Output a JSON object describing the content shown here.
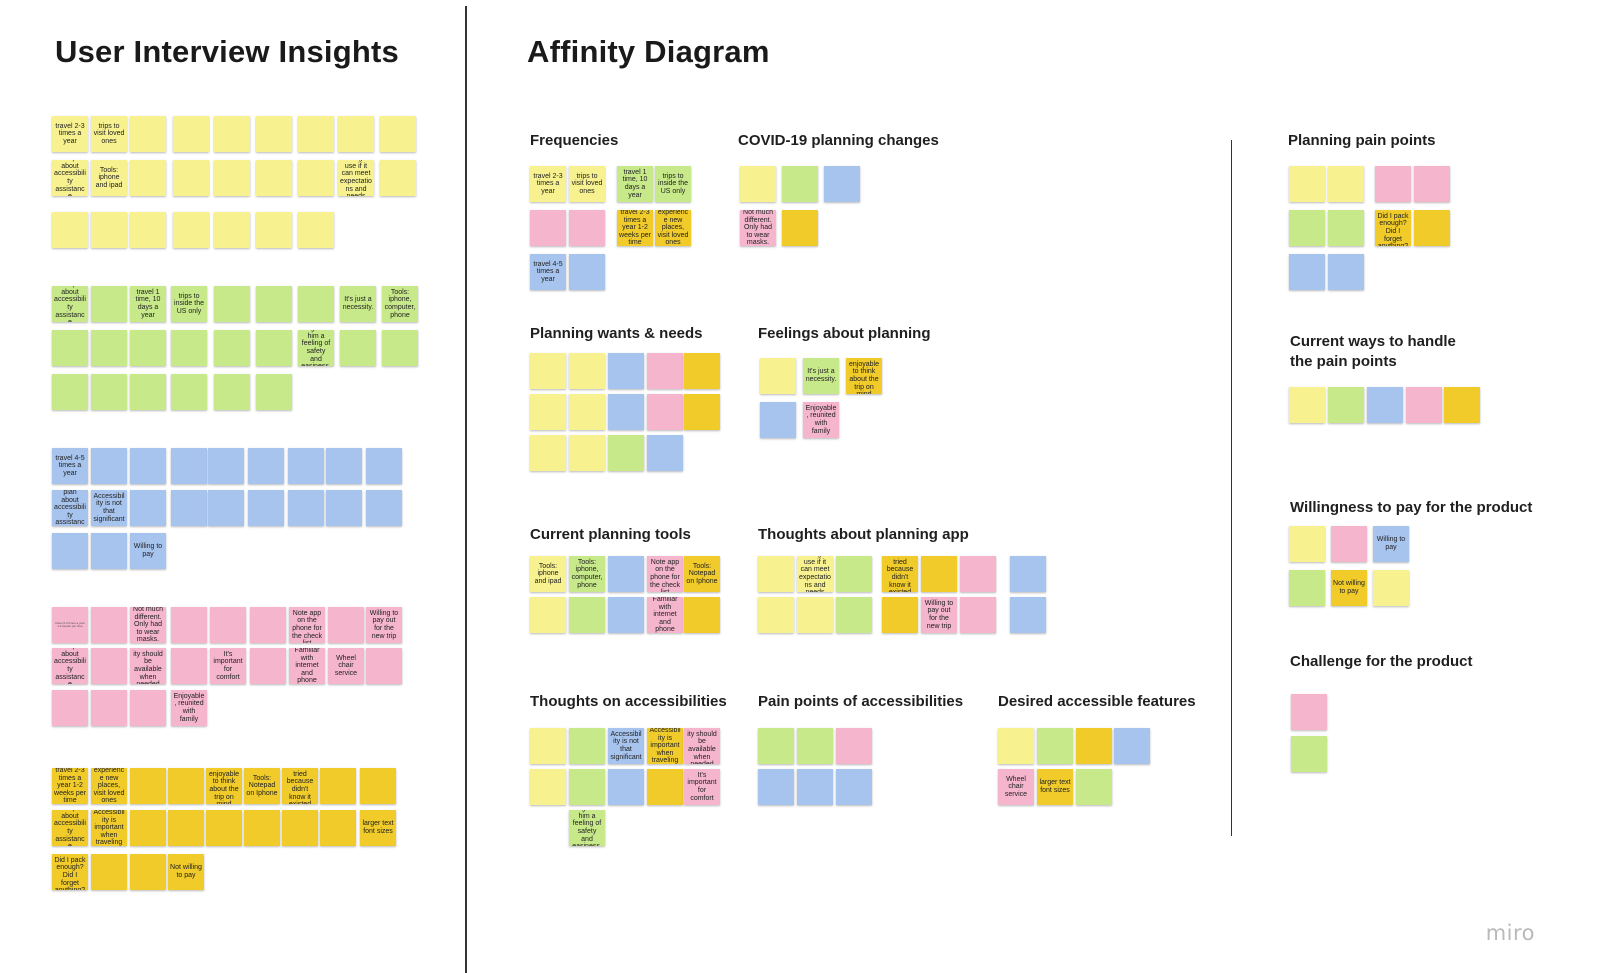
{
  "board": {
    "left_title": "User Interview Insights",
    "right_title": "Affinity Diagram",
    "logo": "miro"
  },
  "colors": {
    "yellow": "#f7f28f",
    "green": "#c7e98a",
    "blue": "#a7c4ef",
    "pink": "#f5b5cd",
    "orange": "#f0cb2a"
  },
  "clusters": [
    {
      "label": "Frequencies"
    },
    {
      "label": "COVID-19 planning changes"
    },
    {
      "label": "Planning pain points"
    },
    {
      "label": "Planning wants & needs"
    },
    {
      "label": "Feelings about planning"
    },
    {
      "label": "Current ways to handle the pain points"
    },
    {
      "label": "Current planning tools"
    },
    {
      "label": "Thoughts about planning app"
    },
    {
      "label": "Willingness to pay for the product"
    },
    {
      "label": "Thoughts on accessibilities"
    },
    {
      "label": "Pain points of accessibilities"
    },
    {
      "label": "Desired accessible features"
    },
    {
      "label": "Challenge for the product"
    }
  ],
  "notes": {
    "travel_2_3": "travel 2-3 times a year",
    "trips_loved": "trips to visit loved ones",
    "plan_accessibility": "Does plan about accessibility assistance",
    "tools_ipad": "Tools: iphone and ipad",
    "willing_expect": "Willing to use if it can meet expectations and needs",
    "travel_1_10": "travel 1 time, 10 days a year",
    "trips_us": "trips to inside the US only",
    "necessity": "It's just a necessity.",
    "gives_safety": "It gives him a feeling of safety and easiness.",
    "tools_phone": "Tools: iphone, computer, phone",
    "travel_4_5": "travel 4-5 times a year",
    "not_plan_access": "Does not plan about accessibility assistance",
    "access_not_sig": "Accessibility is not that significant",
    "willing_pay": "Willing to pay",
    "tools_notes_app": "Tools: Note app on the phone for the check list",
    "familiar_phone": "Familiar with internet and phone",
    "wheel_chair": "Wheel chair service",
    "willing_out": "Willing to pay out for the new trip",
    "important_comfort": "It's important for comfort",
    "enjoyable_family": "Enjoyable, reunited with family",
    "travel_2_3_week": "travel 2-3 times a year 1-2 weeks per time",
    "experience_places": "experience new places, visit loved ones",
    "enjoyable_mind": "It's enjoyable to think about the trip on mind",
    "tools_notepad": "Tools: Notepad on Iphone",
    "never_tried": "Never tried because didn't know it existed",
    "access_important": "Accessibility is important when traveling",
    "larger_text": "larger text font sizes",
    "worries_forget": "Worries: Did I pack enough? Did I forget anything?",
    "not_willing": "Not willing to pay",
    "not_much_diff": "Not much different. Only had to wear masks.",
    "access_available": "Accessibility should be available when needed"
  }
}
